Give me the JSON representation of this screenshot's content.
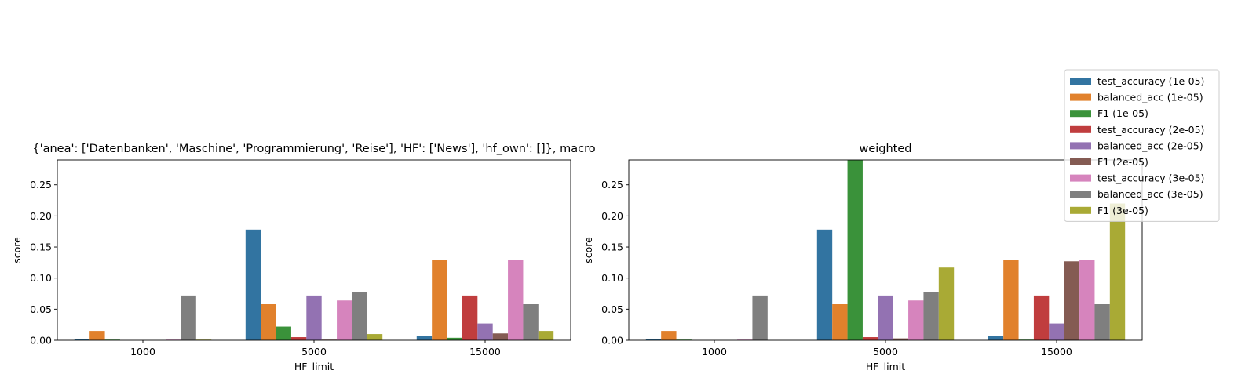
{
  "chart_data": {
    "type": "bar",
    "categories": [
      "1000",
      "5000",
      "15000"
    ],
    "xlabel": "HF_limit",
    "ylabel": "score",
    "ylim": [
      0,
      0.29
    ],
    "yticks": [
      "0.00",
      "0.05",
      "0.10",
      "0.15",
      "0.20",
      "0.25"
    ],
    "legend_position": "upper-right (outside)",
    "series_meta": [
      {
        "name": "test_accuracy (1e-05)",
        "color": "#3274a1"
      },
      {
        "name": "balanced_acc (1e-05)",
        "color": "#e1812c"
      },
      {
        "name": "F1 (1e-05)",
        "color": "#3a923a"
      },
      {
        "name": "test_accuracy (2e-05)",
        "color": "#c03d3e"
      },
      {
        "name": "balanced_acc (2e-05)",
        "color": "#9372b2"
      },
      {
        "name": "F1 (2e-05)",
        "color": "#845b53"
      },
      {
        "name": "test_accuracy (3e-05)",
        "color": "#d684bd"
      },
      {
        "name": "balanced_acc (3e-05)",
        "color": "#7f7f7f"
      },
      {
        "name": "F1 (3e-05)",
        "color": "#a9aa35"
      }
    ],
    "panels": [
      {
        "title": "{'anea': ['Datenbanken', 'Maschine', 'Programmierung', 'Reise'], 'HF': ['News'], 'hf_own': []}, macro",
        "values": [
          [
            0.002,
            0.178,
            0.007
          ],
          [
            0.015,
            0.058,
            0.129
          ],
          [
            0.001,
            0.022,
            0.004
          ],
          [
            0.0,
            0.005,
            0.072
          ],
          [
            0.0,
            0.072,
            0.027
          ],
          [
            0.0,
            0.001,
            0.011
          ],
          [
            0.001,
            0.064,
            0.129
          ],
          [
            0.072,
            0.077,
            0.058
          ],
          [
            0.001,
            0.01,
            0.015
          ]
        ]
      },
      {
        "title": "weighted",
        "values": [
          [
            0.002,
            0.178,
            0.007
          ],
          [
            0.015,
            0.058,
            0.129
          ],
          [
            0.001,
            0.29,
            0.001
          ],
          [
            0.0,
            0.005,
            0.072
          ],
          [
            0.0,
            0.072,
            0.027
          ],
          [
            0.0,
            0.003,
            0.127
          ],
          [
            0.001,
            0.064,
            0.129
          ],
          [
            0.072,
            0.077,
            0.058
          ],
          [
            0.0,
            0.117,
            0.22
          ]
        ]
      }
    ]
  }
}
